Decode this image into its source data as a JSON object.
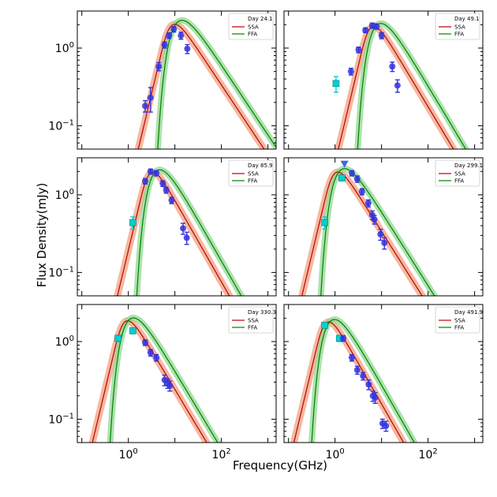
{
  "figure": {
    "xlabel": "Frequency(GHz)",
    "ylabel": "Flux Density(mJy)"
  },
  "colors": {
    "ssa": "#c00000",
    "ssa_band": "#f0a080",
    "ffa": "#008000",
    "ffa_band": "#90d890",
    "detection": "#3333dd",
    "upper_limit": "#4466dd",
    "early_point": "#00d0d0"
  },
  "chart_data": [
    {
      "type": "scatter",
      "title": "Day 24.1",
      "legend": [
        "Day 24.1",
        "SSA",
        "FFA"
      ],
      "xscale": "log",
      "yscale": "log",
      "xlim": [
        0.08,
        1500
      ],
      "ylim": [
        0.05,
        3.0
      ],
      "xticks": [
        "10^0",
        "10^2"
      ],
      "yticks": [
        "10^0",
        "10^-1"
      ],
      "model": {
        "ssa_peak_freq": 8.5,
        "ssa_peak_flux": 1.95,
        "ffa_peak_freq": 9.5,
        "ffa_peak_flux": 1.85,
        "thin_index": -0.9
      },
      "detections": [
        {
          "x": 2.3,
          "y": 0.18,
          "err": 0.03
        },
        {
          "x": 3.0,
          "y": 0.23,
          "err": 0.08
        },
        {
          "x": 4.5,
          "y": 0.58,
          "err": 0.07
        },
        {
          "x": 6.0,
          "y": 1.1,
          "err": 0.1
        },
        {
          "x": 7.5,
          "y": 1.45,
          "err": 0.12
        },
        {
          "x": 9.5,
          "y": 1.75,
          "err": 0.14
        },
        {
          "x": 13.5,
          "y": 1.45,
          "err": 0.15
        },
        {
          "x": 18.5,
          "y": 0.98,
          "err": 0.13
        }
      ],
      "early_points": [],
      "upper_limits": []
    },
    {
      "type": "scatter",
      "title": "Day 49.1",
      "legend": [
        "Day 49.1",
        "SSA",
        "FFA"
      ],
      "xscale": "log",
      "yscale": "log",
      "xlim": [
        0.08,
        1500
      ],
      "ylim": [
        0.05,
        3.0
      ],
      "xticks": [
        "10^0",
        "10^2"
      ],
      "yticks": [],
      "model": {
        "ssa_peak_freq": 6.0,
        "ssa_peak_flux": 1.85,
        "ffa_peak_freq": 6.8,
        "ffa_peak_flux": 1.75,
        "thin_index": -1.0
      },
      "detections": [
        {
          "x": 2.2,
          "y": 0.5,
          "err": 0.05
        },
        {
          "x": 3.2,
          "y": 0.95,
          "err": 0.08
        },
        {
          "x": 4.5,
          "y": 1.7,
          "err": 0.12
        },
        {
          "x": 6.3,
          "y": 1.95,
          "err": 0.15
        },
        {
          "x": 7.8,
          "y": 1.9,
          "err": 0.15
        },
        {
          "x": 10.0,
          "y": 1.45,
          "err": 0.13
        },
        {
          "x": 17.0,
          "y": 0.58,
          "err": 0.08
        },
        {
          "x": 22.0,
          "y": 0.33,
          "err": 0.06
        }
      ],
      "early_points": [
        {
          "x": 1.05,
          "y": 0.35,
          "err": 0.08
        }
      ],
      "upper_limits": []
    },
    {
      "type": "scatter",
      "title": "Day 85.9",
      "legend": [
        "Day 85.9",
        "SSA",
        "FFA"
      ],
      "xscale": "log",
      "yscale": "log",
      "xlim": [
        0.08,
        1500
      ],
      "ylim": [
        0.05,
        3.0
      ],
      "xticks": [
        "10^0",
        "10^2"
      ],
      "yticks": [
        "10^0",
        "10^-1"
      ],
      "model": {
        "ssa_peak_freq": 3.0,
        "ssa_peak_flux": 1.9,
        "ffa_peak_freq": 3.4,
        "ffa_peak_flux": 1.8,
        "thin_index": -1.05
      },
      "detections": [
        {
          "x": 2.3,
          "y": 1.5,
          "err": 0.12
        },
        {
          "x": 3.0,
          "y": 2.0,
          "err": 0.15
        },
        {
          "x": 4.0,
          "y": 1.9,
          "err": 0.15
        },
        {
          "x": 5.5,
          "y": 1.4,
          "err": 0.12
        },
        {
          "x": 6.5,
          "y": 1.15,
          "err": 0.1
        },
        {
          "x": 8.5,
          "y": 0.85,
          "err": 0.08
        },
        {
          "x": 15.0,
          "y": 0.37,
          "err": 0.06
        },
        {
          "x": 18.0,
          "y": 0.28,
          "err": 0.05
        }
      ],
      "early_points": [
        {
          "x": 1.25,
          "y": 0.44,
          "err": 0.08
        }
      ],
      "upper_limits": []
    },
    {
      "type": "scatter",
      "title": "Day 299.1",
      "legend": [
        "Day 299.1",
        "SSA",
        "FFA"
      ],
      "xscale": "log",
      "yscale": "log",
      "xlim": [
        0.08,
        1500
      ],
      "ylim": [
        0.05,
        3.0
      ],
      "xticks": [
        "10^0",
        "10^2"
      ],
      "yticks": [],
      "model": {
        "ssa_peak_freq": 1.0,
        "ssa_peak_flux": 1.9,
        "ffa_peak_freq": 1.1,
        "ffa_peak_flux": 1.8,
        "thin_index": -0.95
      },
      "detections": [
        {
          "x": 2.3,
          "y": 1.9,
          "err": 0.15
        },
        {
          "x": 3.0,
          "y": 1.6,
          "err": 0.15
        },
        {
          "x": 3.8,
          "y": 1.1,
          "err": 0.1
        },
        {
          "x": 5.2,
          "y": 0.78,
          "err": 0.08
        },
        {
          "x": 6.3,
          "y": 0.55,
          "err": 0.07
        },
        {
          "x": 7.0,
          "y": 0.48,
          "err": 0.06
        },
        {
          "x": 9.5,
          "y": 0.31,
          "err": 0.05
        },
        {
          "x": 11.5,
          "y": 0.24,
          "err": 0.04
        }
      ],
      "early_points": [
        {
          "x": 0.6,
          "y": 0.44,
          "err": 0.08
        },
        {
          "x": 1.4,
          "y": 1.65,
          "err": 0.14
        }
      ],
      "upper_limits": [
        {
          "x": 1.6,
          "y": 2.5
        }
      ]
    },
    {
      "type": "scatter",
      "title": "Day 330.3",
      "legend": [
        "Day 330.3",
        "SSA",
        "FFA"
      ],
      "xscale": "log",
      "yscale": "log",
      "xlim": [
        0.08,
        1500
      ],
      "ylim": [
        0.05,
        3.0
      ],
      "xticks": [
        "10^0",
        "10^2"
      ],
      "yticks": [
        "10^0",
        "10^-1"
      ],
      "model": {
        "ssa_peak_freq": 0.85,
        "ssa_peak_flux": 1.8,
        "ffa_peak_freq": 0.9,
        "ffa_peak_flux": 1.7,
        "thin_index": -1.0
      },
      "detections": [
        {
          "x": 2.3,
          "y": 0.97,
          "err": 0.08
        },
        {
          "x": 3.0,
          "y": 0.72,
          "err": 0.07
        },
        {
          "x": 4.0,
          "y": 0.62,
          "err": 0.06
        },
        {
          "x": 6.0,
          "y": 0.32,
          "err": 0.05
        },
        {
          "x": 7.0,
          "y": 0.29,
          "err": 0.04
        },
        {
          "x": 7.8,
          "y": 0.27,
          "err": 0.04
        }
      ],
      "early_points": [
        {
          "x": 0.6,
          "y": 1.1,
          "err": 0.1
        },
        {
          "x": 1.25,
          "y": 1.38,
          "err": 0.12
        }
      ],
      "upper_limits": []
    },
    {
      "type": "scatter",
      "title": "Day 491.9",
      "legend": [
        "Day 491.9",
        "SSA",
        "FFA"
      ],
      "xscale": "log",
      "yscale": "log",
      "xlim": [
        0.08,
        1500
      ],
      "ylim": [
        0.05,
        3.0
      ],
      "xticks": [
        "10^0",
        "10^2"
      ],
      "yticks": [],
      "model": {
        "ssa_peak_freq": 0.65,
        "ssa_peak_flux": 1.75,
        "ffa_peak_freq": 0.7,
        "ffa_peak_flux": 1.65,
        "thin_index": -1.05
      },
      "detections": [
        {
          "x": 1.5,
          "y": 1.1,
          "err": 0.09
        },
        {
          "x": 2.3,
          "y": 0.62,
          "err": 0.06
        },
        {
          "x": 3.0,
          "y": 0.43,
          "err": 0.05
        },
        {
          "x": 4.0,
          "y": 0.36,
          "err": 0.04
        },
        {
          "x": 5.3,
          "y": 0.28,
          "err": 0.04
        },
        {
          "x": 6.5,
          "y": 0.2,
          "err": 0.03
        },
        {
          "x": 7.3,
          "y": 0.19,
          "err": 0.03
        },
        {
          "x": 10.5,
          "y": 0.088,
          "err": 0.012
        },
        {
          "x": 12.5,
          "y": 0.082,
          "err": 0.012
        }
      ],
      "early_points": [
        {
          "x": 0.6,
          "y": 1.62,
          "err": 0.12
        },
        {
          "x": 1.25,
          "y": 1.1,
          "err": 0.1
        }
      ],
      "upper_limits": []
    }
  ]
}
